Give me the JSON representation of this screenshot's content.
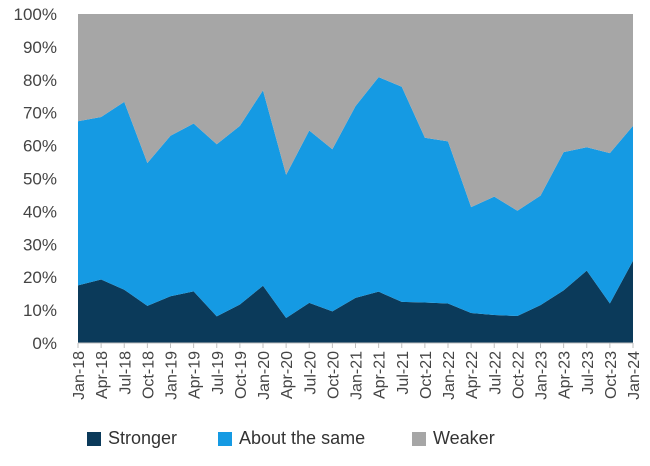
{
  "chart_data": {
    "type": "area",
    "stacked": true,
    "x": [
      "Jan-18",
      "Apr-18",
      "Jul-18",
      "Oct-18",
      "Jan-19",
      "Apr-19",
      "Jul-19",
      "Oct-19",
      "Jan-20",
      "Apr-20",
      "Jul-20",
      "Oct-20",
      "Jan-21",
      "Apr-21",
      "Jul-21",
      "Oct-21",
      "Jan-22",
      "Apr-22",
      "Jul-22",
      "Oct-22",
      "Jan-23",
      "Apr-23",
      "Jul-23",
      "Oct-23",
      "Jan-24"
    ],
    "ylim": [
      0,
      100
    ],
    "yticks": [
      "0%",
      "10%",
      "20%",
      "30%",
      "40%",
      "50%",
      "60%",
      "70%",
      "80%",
      "90%",
      "100%"
    ],
    "series": [
      {
        "name": "Stronger",
        "color": "#0b3a5a",
        "values": [
          17.5,
          19.3,
          16.2,
          11.3,
          14.2,
          15.7,
          8.1,
          11.7,
          17.4,
          7.6,
          12.2,
          9.6,
          13.7,
          15.6,
          12.5,
          12.3,
          12.0,
          9.1,
          8.5,
          8.2,
          11.5,
          16.0,
          22.0,
          12.0,
          25.0
        ]
      },
      {
        "name": "About the same",
        "color": "#159ae3",
        "values": [
          49.9,
          49.4,
          57.1,
          43.4,
          48.8,
          51.0,
          52.3,
          54.3,
          59.4,
          43.5,
          52.4,
          49.3,
          58.3,
          65.2,
          65.4,
          50.1,
          49.3,
          32.2,
          36.0,
          32.0,
          33.3,
          42.0,
          37.5,
          45.7,
          41.0
        ]
      },
      {
        "name": "Weaker",
        "color": "#a6a6a6",
        "values": [
          32.6,
          31.3,
          26.7,
          45.3,
          37.0,
          33.3,
          39.6,
          34.0,
          23.2,
          48.9,
          35.4,
          41.1,
          28.0,
          19.2,
          22.1,
          37.6,
          38.7,
          58.7,
          55.5,
          59.8,
          55.2,
          42.0,
          40.5,
          42.3,
          34.0
        ]
      }
    ]
  }
}
